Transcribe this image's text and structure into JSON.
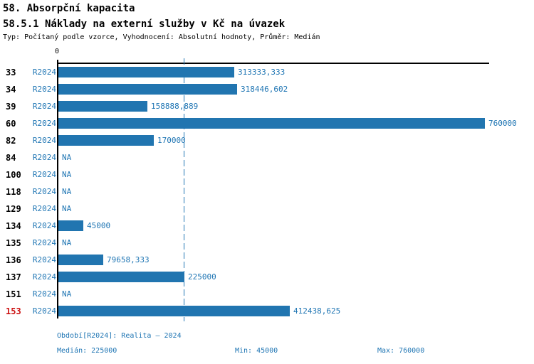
{
  "header": {
    "title1": "58. Absorpční kapacita",
    "title2": "58.5.1 Náklady na externí služby v Kč na úvazek",
    "subtitle": "Typ: Počítaný podle vzorce, Vyhodnocení: Absolutní hodnoty, Průměr: Medián"
  },
  "colors": {
    "bar_blue": "#2175B0",
    "text_blue": "#2076B4",
    "highlight_red": "#CC1111",
    "axis_black": "#000000"
  },
  "chart_data": {
    "type": "bar",
    "orientation": "horizontal",
    "period_label": "R2024",
    "categories": [
      "33",
      "34",
      "39",
      "60",
      "82",
      "84",
      "100",
      "118",
      "129",
      "134",
      "135",
      "136",
      "137",
      "151",
      "153"
    ],
    "values": [
      313333.333,
      318446.602,
      158888.889,
      760000,
      170000,
      null,
      null,
      null,
      null,
      45000,
      null,
      79658.333,
      225000,
      null,
      412438.625
    ],
    "value_labels": [
      "313333,333",
      "318446,602",
      "158888,889",
      "760000",
      "170000",
      "NA",
      "NA",
      "NA",
      "NA",
      "45000",
      "NA",
      "79658,333",
      "225000",
      "NA",
      "412438,625"
    ],
    "na_label": "NA",
    "highlighted_category": "153",
    "xlim": [
      0,
      760000
    ],
    "zero_tick_label": "0",
    "median_value": 225000,
    "grid": "median-dashed-line",
    "legend": "none"
  },
  "footer": {
    "period": "Období[R2024]: Realita – 2024",
    "median": "Medián: 225000",
    "min": "Min: 45000",
    "max": "Max: 760000"
  }
}
